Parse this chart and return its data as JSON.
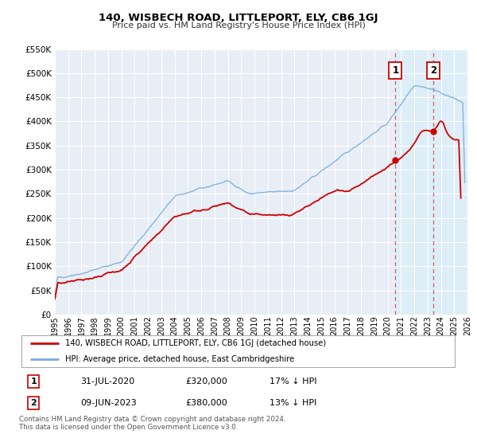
{
  "title": "140, WISBECH ROAD, LITTLEPORT, ELY, CB6 1GJ",
  "subtitle": "Price paid vs. HM Land Registry's House Price Index (HPI)",
  "ylim": [
    0,
    550000
  ],
  "xlim": [
    1995,
    2026
  ],
  "yticks": [
    0,
    50000,
    100000,
    150000,
    200000,
    250000,
    300000,
    350000,
    400000,
    450000,
    500000,
    550000
  ],
  "ytick_labels": [
    "£0",
    "£50K",
    "£100K",
    "£150K",
    "£200K",
    "£250K",
    "£300K",
    "£350K",
    "£400K",
    "£450K",
    "£500K",
    "£550K"
  ],
  "xticks": [
    1995,
    1996,
    1997,
    1998,
    1999,
    2000,
    2001,
    2002,
    2003,
    2004,
    2005,
    2006,
    2007,
    2008,
    2009,
    2010,
    2011,
    2012,
    2013,
    2014,
    2015,
    2016,
    2017,
    2018,
    2019,
    2020,
    2021,
    2022,
    2023,
    2024,
    2025,
    2026
  ],
  "hpi_color": "#7aade0",
  "price_color": "#cc0000",
  "background_color": "#e8eef5",
  "shade_color": "#d0e4f5",
  "grid_color": "#ffffff",
  "annotation1_date": 2020.58,
  "annotation1_price": 320000,
  "annotation2_date": 2023.44,
  "annotation2_price": 380000,
  "legend_label1": "140, WISBECH ROAD, LITTLEPORT, ELY, CB6 1GJ (detached house)",
  "legend_label2": "HPI: Average price, detached house, East Cambridgeshire",
  "table_row1": [
    "1",
    "31-JUL-2020",
    "£320,000",
    "17% ↓ HPI"
  ],
  "table_row2": [
    "2",
    "09-JUN-2023",
    "£380,000",
    "13% ↓ HPI"
  ],
  "footnote": "Contains HM Land Registry data © Crown copyright and database right 2024.\nThis data is licensed under the Open Government Licence v3.0."
}
